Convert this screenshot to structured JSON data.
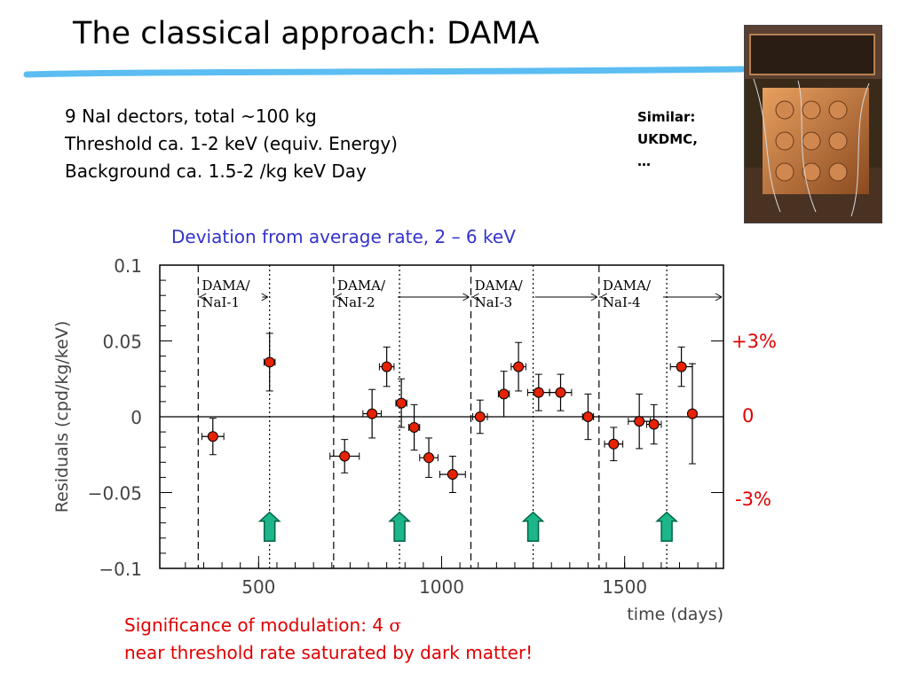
{
  "slide": {
    "title": "The classical approach: DAMA",
    "bullets": [
      "9 NaI dectors, total ~100 kg",
      "Threshold ca. 1-2 keV (equiv. Energy)",
      "Background ca. 1.5-2 /kg keV Day"
    ],
    "similar": [
      "Similar:",
      "UKDMC,",
      "…"
    ],
    "photo_icon": "detector-apparatus-photo",
    "chart_heading": "Deviation from average rate, 2 – 6 keV",
    "percent_labels": {
      "plus": "+3%",
      "zero": "0",
      "minus": "-3%"
    },
    "significance_prefix": "Significance of modulation: 4 ",
    "significance_symbol": "σ",
    "conclusion": "near threshold rate saturated by dark matter!",
    "colors": {
      "accent_line": "#5bbdf2",
      "heading": "#3333cc",
      "highlight": "#e00000",
      "marker": "#e62200",
      "arrow": "#1db58a"
    }
  },
  "chart_data": {
    "type": "scatter",
    "xlabel": "time (days)",
    "ylabel": "Residuals (cpd/kg/keV)",
    "xlim": [
      230,
      1770
    ],
    "ylim": [
      -0.1,
      0.1
    ],
    "xticks": [
      500,
      1000,
      1500
    ],
    "xtick_labels": [
      "500",
      "1000",
      "1500"
    ],
    "yticks": [
      0.1,
      0.05,
      0,
      -0.05,
      -0.1
    ],
    "ytick_labels": [
      "0.1",
      "0.05",
      "0",
      "−0.05",
      "−0.1"
    ],
    "points": [
      {
        "x": 375,
        "y": -0.013,
        "xerr": 30,
        "yerr": 0.012
      },
      {
        "x": 530,
        "y": 0.036,
        "xerr": 15,
        "yerr": 0.019
      },
      {
        "x": 735,
        "y": -0.026,
        "xerr": 40,
        "yerr": 0.011
      },
      {
        "x": 810,
        "y": 0.002,
        "xerr": 25,
        "yerr": 0.016
      },
      {
        "x": 850,
        "y": 0.033,
        "xerr": 20,
        "yerr": 0.013
      },
      {
        "x": 890,
        "y": 0.009,
        "xerr": 15,
        "yerr": 0.016
      },
      {
        "x": 925,
        "y": -0.007,
        "xerr": 15,
        "yerr": 0.015
      },
      {
        "x": 965,
        "y": -0.027,
        "xerr": 25,
        "yerr": 0.013
      },
      {
        "x": 1030,
        "y": -0.038,
        "xerr": 35,
        "yerr": 0.012
      },
      {
        "x": 1105,
        "y": 0.0,
        "xerr": 20,
        "yerr": 0.011
      },
      {
        "x": 1170,
        "y": 0.015,
        "xerr": 15,
        "yerr": 0.015
      },
      {
        "x": 1210,
        "y": 0.033,
        "xerr": 20,
        "yerr": 0.016
      },
      {
        "x": 1265,
        "y": 0.016,
        "xerr": 30,
        "yerr": 0.012
      },
      {
        "x": 1325,
        "y": 0.016,
        "xerr": 30,
        "yerr": 0.012
      },
      {
        "x": 1400,
        "y": 0.0,
        "xerr": 15,
        "yerr": 0.015
      },
      {
        "x": 1470,
        "y": -0.018,
        "xerr": 25,
        "yerr": 0.011
      },
      {
        "x": 1540,
        "y": -0.003,
        "xerr": 30,
        "yerr": 0.018
      },
      {
        "x": 1580,
        "y": -0.005,
        "xerr": 20,
        "yerr": 0.013
      },
      {
        "x": 1655,
        "y": 0.033,
        "xerr": 30,
        "yerr": 0.013
      },
      {
        "x": 1685,
        "y": 0.002,
        "xerr": 5,
        "yerr": 0.033
      }
    ],
    "dashed_lines_x": [
      335,
      705,
      1080,
      1430
    ],
    "dotted_lines_x": [
      530,
      885,
      1250,
      1615
    ],
    "arrows_x": [
      530,
      885,
      1250,
      1615
    ],
    "arrow_y_range": [
      -0.082,
      -0.063
    ],
    "periods": [
      {
        "label_1": "DAMA/",
        "label_2": "NaI-1",
        "x_left": 335,
        "x_right": 530,
        "label_x": 345
      },
      {
        "label_1": "DAMA/",
        "label_2": "NaI-2",
        "x_left": 705,
        "x_right": 1080,
        "label_x": 715
      },
      {
        "label_1": "DAMA/",
        "label_2": "NaI-3",
        "x_left": 1080,
        "x_right": 1430,
        "label_x": 1090
      },
      {
        "label_1": "DAMA/",
        "label_2": "NaI-4",
        "x_left": 1430,
        "x_right": 1770,
        "label_x": 1440
      }
    ],
    "zero_line": 0
  }
}
